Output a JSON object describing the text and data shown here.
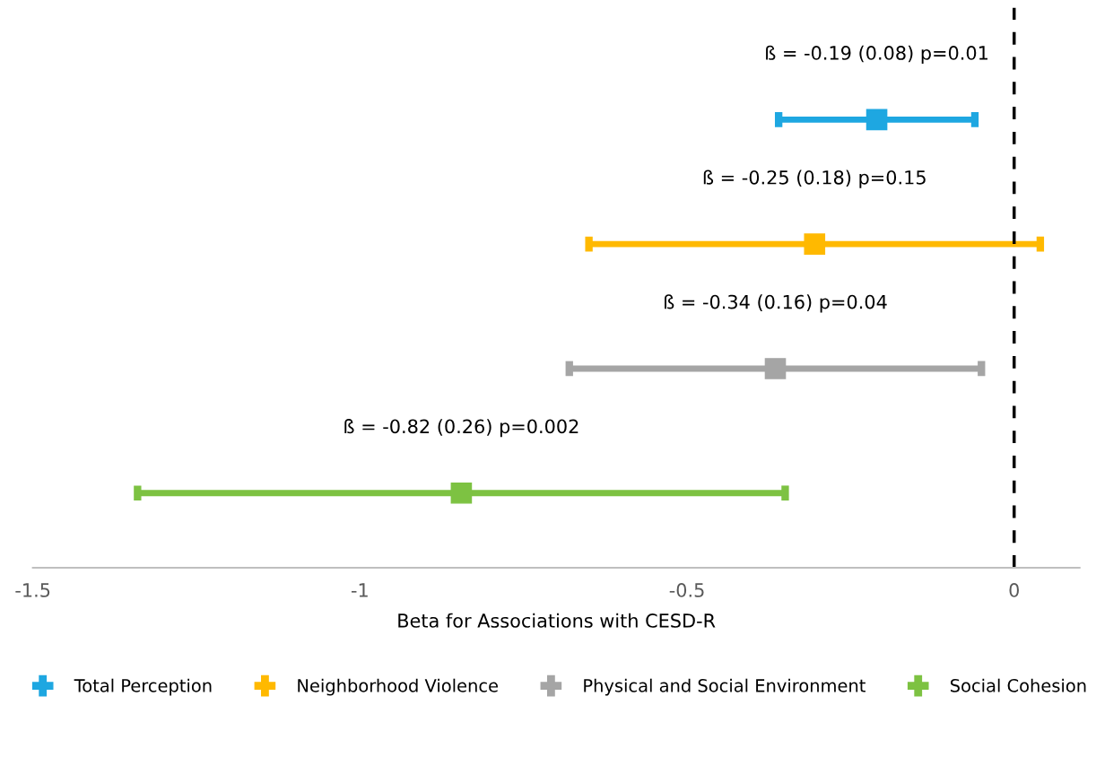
{
  "chart_data": {
    "type": "scatter",
    "orientation": "horizontal",
    "categories": [
      null,
      null,
      null,
      null
    ],
    "xlabel": "Beta for Associations with CESD-R",
    "xlim": [
      -1.5,
      0.1
    ],
    "xticks": [
      -1.5,
      -1,
      -0.5,
      0
    ],
    "tick_labels": "x",
    "marker": "square",
    "legend": "bottom",
    "series": [
      {
        "name": "Total Perception",
        "color": "#1ea7e1",
        "values": [
          -0.21,
          null,
          null,
          null
        ],
        "errors": [
          0.15,
          null,
          null,
          null
        ]
      },
      {
        "name": "Neighborhood Violence",
        "color": "#ffb900",
        "values": [
          null,
          -0.305,
          null,
          null
        ],
        "errors": [
          null,
          0.345,
          null,
          null
        ]
      },
      {
        "name": "Physical and Social Environment",
        "color": "#a5a5a5",
        "values": [
          null,
          null,
          -0.365,
          null
        ],
        "errors": [
          null,
          null,
          0.315,
          null
        ]
      },
      {
        "name": "Social Cohesion",
        "color": "#7dc242",
        "values": [
          null,
          null,
          null,
          -0.845
        ],
        "errors": [
          null,
          null,
          null,
          0.495
        ]
      }
    ],
    "annotations": [
      "ß = -0.19 (0.08) p=0.01",
      "ß = -0.25 (0.18) p=0.15",
      "ß = -0.34 (0.16) p=0.04",
      "ß = -0.82 (0.26) p=0.002"
    ],
    "ref_lines": [
      {
        "axis": "x",
        "value": 0,
        "color": "#000000",
        "line_style": "dashed"
      }
    ]
  }
}
